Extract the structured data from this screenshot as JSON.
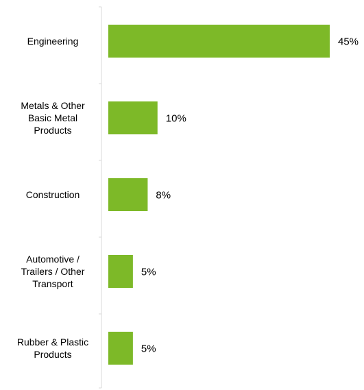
{
  "chart_data": {
    "type": "bar",
    "orientation": "horizontal",
    "categories": [
      [
        "Engineering"
      ],
      [
        "Metals & Other",
        "Basic Metal",
        "Products"
      ],
      [
        "Construction"
      ],
      [
        "Automotive /",
        "Trailers / Other",
        "Transport"
      ],
      [
        "Rubber & Plastic",
        "Products"
      ]
    ],
    "values": [
      45,
      10,
      8,
      5,
      5
    ],
    "value_labels": [
      "45%",
      "10%",
      "8%",
      "5%",
      "5%"
    ],
    "unit": "%",
    "xlim": [
      0,
      45
    ],
    "grid": false,
    "legend": "none",
    "title": "",
    "xlabel": "",
    "ylabel": "",
    "colors": {
      "bar": "#7DB928",
      "axis": "#D9D9D9",
      "text": "#000000"
    }
  }
}
